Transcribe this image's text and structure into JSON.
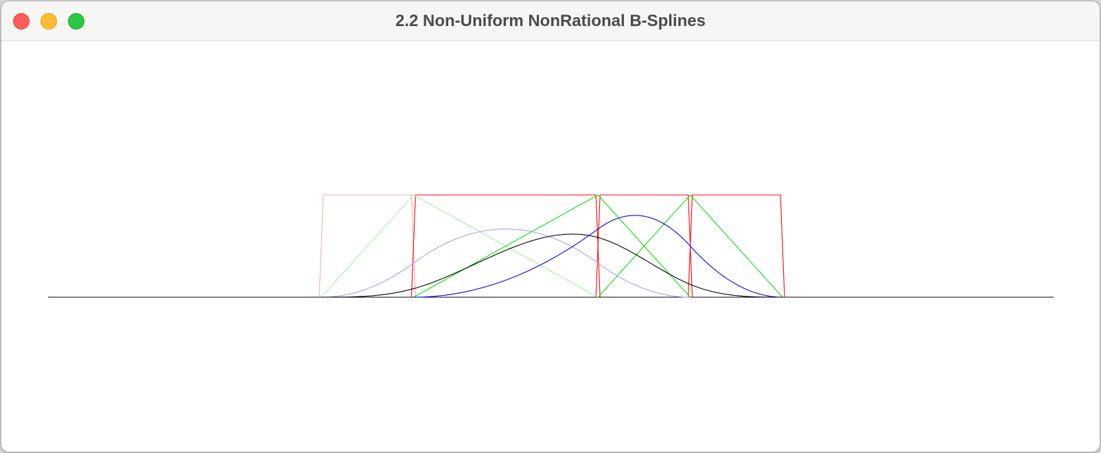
{
  "window": {
    "title": "2.2 Non-Uniform NonRational B-Splines"
  },
  "colors": {
    "degree0": "#ff0000",
    "degree0_faint": "#ffaaaa",
    "degree1": "#00e000",
    "degree1_faint": "#a0f0a0",
    "degree2": "#0000ff",
    "degree2_faint": "#a0a0ff",
    "degree3": "#000000",
    "axis": "#000000"
  },
  "chart_data": {
    "type": "line",
    "description": "Non-uniform B-spline basis functions of degree 0 (red), 1 (green), 2 (blue) and 3 (black)",
    "knots": [
      0,
      1,
      3,
      4,
      5
    ],
    "domain": [
      -3,
      8
    ],
    "ylim": [
      0,
      1
    ],
    "series": [
      {
        "degree": 0,
        "index": 0
      },
      {
        "degree": 0,
        "index": 1
      },
      {
        "degree": 0,
        "index": 2
      },
      {
        "degree": 0,
        "index": 3
      },
      {
        "degree": 1,
        "index": 0
      },
      {
        "degree": 1,
        "index": 1
      },
      {
        "degree": 1,
        "index": 2
      },
      {
        "degree": 2,
        "index": 0
      },
      {
        "degree": 2,
        "index": 1
      },
      {
        "degree": 3,
        "index": 0
      }
    ]
  }
}
